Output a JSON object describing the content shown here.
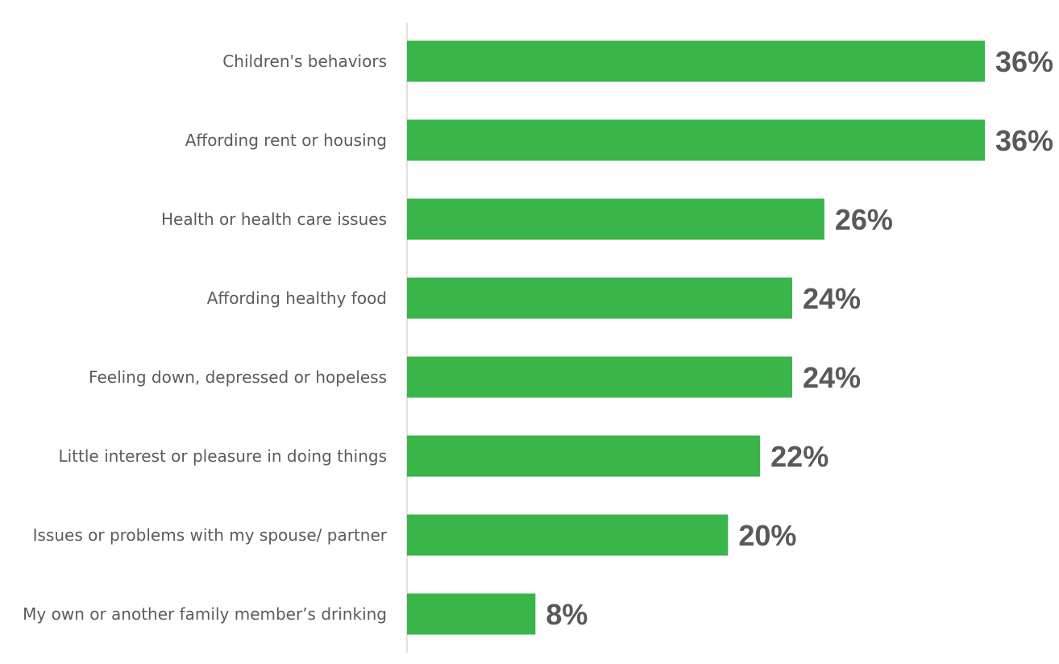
{
  "chart_data": {
    "type": "bar",
    "orientation": "horizontal",
    "categories": [
      "Children's behaviors",
      "Affording rent or housing",
      "Health or health care issues",
      "Affording healthy food",
      "Feeling down, depressed or hopeless",
      "Little interest or pleasure in doing things",
      "Issues or problems with my spouse/ partner",
      "My own or another family member’s drinking"
    ],
    "values": [
      36,
      36,
      26,
      24,
      24,
      22,
      20,
      8
    ],
    "value_labels": [
      "36%",
      "36%",
      "26%",
      "24%",
      "24%",
      "22%",
      "20%",
      "8%"
    ],
    "unit": "%",
    "xlim": [
      0,
      36
    ],
    "grid": false,
    "legend": "none",
    "title": "",
    "xlabel": "",
    "ylabel": "",
    "colors": {
      "bar": "#39b54a",
      "axis": "#d9d9d9",
      "category_text": "#5b5b5b",
      "value_text": "#595959"
    }
  }
}
